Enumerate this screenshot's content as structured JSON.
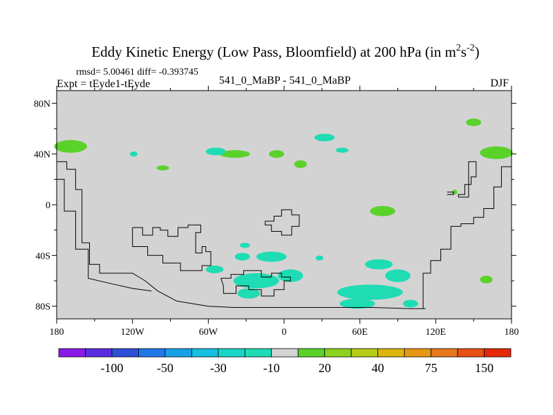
{
  "chart_data": {
    "type": "heatmap",
    "title": "Eddy Kinetic Energy (Low Pass, Bloomfield) at 200 hPa (in m",
    "title_units": {
      "sup1": "2",
      "mid": "s",
      "sup2": "-2",
      "tail": ")"
    },
    "info": {
      "stats": "rmsd= 5.00461 diff= -0.393745",
      "expt": "Expt = tEyde1-tEyde",
      "center": "541_0_MaBP - 541_0_MaBP",
      "season": "DJF"
    },
    "x_axis": {
      "range": [
        -180,
        180
      ],
      "tick_values": [
        -180,
        -120,
        -60,
        0,
        60,
        120,
        180
      ],
      "tick_labels": [
        "180",
        "120W",
        "60W",
        "0",
        "60E",
        "120E",
        "180"
      ]
    },
    "y_axis": {
      "range": [
        -90,
        90
      ],
      "tick_values": [
        80,
        40,
        0,
        -40,
        -80
      ],
      "tick_labels": [
        "80N",
        "40N",
        "0",
        "40S",
        "80S"
      ]
    },
    "background_color": "#d3d3d3",
    "colorbar": {
      "colors": [
        "#8a1ae6",
        "#5a2ee0",
        "#2f4fd6",
        "#1f78e6",
        "#18a0e6",
        "#14bfe0",
        "#19d6c8",
        "#1fdcb4",
        "#d3d3d3",
        "#5ad22a",
        "#8cd21e",
        "#b4cc14",
        "#dcb40a",
        "#e69614",
        "#e6781e",
        "#e65014",
        "#e6280a"
      ],
      "labels": [
        "-100",
        "-50",
        "-30",
        "-10",
        "20",
        "40",
        "75",
        "150"
      ]
    },
    "regions": [
      {
        "sign": "positive",
        "color": "#5ad22a",
        "lon": -169,
        "lat": 46,
        "rlon": 13,
        "rlat": 5
      },
      {
        "sign": "positive",
        "color": "#5ad22a",
        "lon": -39,
        "lat": 40,
        "rlon": 12,
        "rlat": 3
      },
      {
        "sign": "positive",
        "color": "#5ad22a",
        "lon": -6,
        "lat": 40,
        "rlon": 6,
        "rlat": 3
      },
      {
        "sign": "positive",
        "color": "#5ad22a",
        "lon": 13,
        "lat": 32,
        "rlon": 5,
        "rlat": 3
      },
      {
        "sign": "positive",
        "color": "#5ad22a",
        "lon": -96,
        "lat": 29,
        "rlon": 5,
        "rlat": 2
      },
      {
        "sign": "positive",
        "color": "#5ad22a",
        "lon": 150,
        "lat": 65,
        "rlon": 6,
        "rlat": 3
      },
      {
        "sign": "positive",
        "color": "#5ad22a",
        "lon": 168,
        "lat": 41,
        "rlon": 13,
        "rlat": 5
      },
      {
        "sign": "positive",
        "color": "#5ad22a",
        "lon": 78,
        "lat": -5,
        "rlon": 10,
        "rlat": 4
      },
      {
        "sign": "positive",
        "color": "#5ad22a",
        "lon": 135,
        "lat": 10,
        "rlon": 2,
        "rlat": 2
      },
      {
        "sign": "positive",
        "color": "#5ad22a",
        "lon": 160,
        "lat": -59,
        "rlon": 5,
        "rlat": 3
      },
      {
        "sign": "negative",
        "color": "#1fdcb4",
        "lon": -54,
        "lat": 42,
        "rlon": 8,
        "rlat": 3
      },
      {
        "sign": "negative",
        "color": "#1fdcb4",
        "lon": 32,
        "lat": 53,
        "rlon": 8,
        "rlat": 3
      },
      {
        "sign": "negative",
        "color": "#1fdcb4",
        "lon": 46,
        "lat": 43,
        "rlon": 5,
        "rlat": 2
      },
      {
        "sign": "negative",
        "color": "#1fdcb4",
        "lon": -119,
        "lat": 40,
        "rlon": 3,
        "rlat": 2
      },
      {
        "sign": "negative",
        "color": "#1fdcb4",
        "lon": -31,
        "lat": -32,
        "rlon": 4,
        "rlat": 2
      },
      {
        "sign": "negative",
        "color": "#1fdcb4",
        "lon": -33,
        "lat": -41,
        "rlon": 6,
        "rlat": 3
      },
      {
        "sign": "negative",
        "color": "#1fdcb4",
        "lon": -10,
        "lat": -41,
        "rlon": 12,
        "rlat": 4
      },
      {
        "sign": "negative",
        "color": "#1fdcb4",
        "lon": 28,
        "lat": -42,
        "rlon": 3,
        "rlat": 2
      },
      {
        "sign": "negative",
        "color": "#1fdcb4",
        "lon": -55,
        "lat": -51,
        "rlon": 7,
        "rlat": 3
      },
      {
        "sign": "negative",
        "color": "#1fdcb4",
        "lon": -22,
        "lat": -60,
        "rlon": 18,
        "rlat": 6
      },
      {
        "sign": "negative",
        "color": "#1fdcb4",
        "lon": 5,
        "lat": -56,
        "rlon": 10,
        "rlat": 5
      },
      {
        "sign": "negative",
        "color": "#1fdcb4",
        "lon": -28,
        "lat": -70,
        "rlon": 9,
        "rlat": 4
      },
      {
        "sign": "negative",
        "color": "#1fdcb4",
        "lon": 68,
        "lat": -69,
        "rlon": 26,
        "rlat": 6
      },
      {
        "sign": "negative",
        "color": "#1fdcb4",
        "lon": 58,
        "lat": -78,
        "rlon": 14,
        "rlat": 4
      },
      {
        "sign": "negative",
        "color": "#1fdcb4",
        "lon": 75,
        "lat": -47,
        "rlon": 11,
        "rlat": 4
      },
      {
        "sign": "negative",
        "color": "#1fdcb4",
        "lon": 90,
        "lat": -56,
        "rlon": 10,
        "rlat": 5
      },
      {
        "sign": "negative",
        "color": "#1fdcb4",
        "lon": 100,
        "lat": -78,
        "rlon": 6,
        "rlat": 3
      }
    ],
    "landmask_outlines": [
      [
        [
          -180,
          34
        ],
        [
          -172,
          34
        ],
        [
          -172,
          28
        ],
        [
          -165,
          28
        ],
        [
          -165,
          12
        ],
        [
          -160,
          12
        ],
        [
          -160,
          -30
        ],
        [
          -154,
          -30
        ],
        [
          -154,
          -47
        ],
        [
          -146,
          -47
        ],
        [
          -146,
          -54
        ],
        [
          -120,
          -54
        ],
        [
          -110,
          -60
        ],
        [
          -100,
          -68
        ],
        [
          -85,
          -76
        ],
        [
          -60,
          -80
        ],
        [
          -40,
          -81
        ],
        [
          -10,
          -81
        ],
        [
          30,
          -81
        ],
        [
          70,
          -81
        ],
        [
          100,
          -82
        ],
        [
          112,
          -82
        ]
      ],
      [
        [
          -180,
          20
        ],
        [
          -174,
          20
        ],
        [
          -174,
          -5
        ],
        [
          -165,
          -5
        ],
        [
          -165,
          -35
        ],
        [
          -155,
          -35
        ],
        [
          -155,
          -58
        ],
        [
          -138,
          -62
        ],
        [
          -120,
          -66
        ],
        [
          -105,
          -68
        ]
      ],
      [
        [
          -120,
          -18
        ],
        [
          -112,
          -18
        ],
        [
          -112,
          -24
        ],
        [
          -104,
          -24
        ],
        [
          -104,
          -18
        ],
        [
          -98,
          -18
        ],
        [
          -98,
          -20
        ],
        [
          -92,
          -20
        ],
        [
          -92,
          -25
        ],
        [
          -84,
          -25
        ],
        [
          -84,
          -18
        ],
        [
          -76,
          -18
        ],
        [
          -76,
          -16
        ],
        [
          -66,
          -16
        ],
        [
          -66,
          -22
        ],
        [
          -70,
          -22
        ],
        [
          -70,
          -38
        ],
        [
          -65,
          -38
        ],
        [
          -65,
          -33
        ],
        [
          -62,
          -33
        ],
        [
          -62,
          -37
        ],
        [
          -58,
          -37
        ],
        [
          -58,
          -48
        ],
        [
          -65,
          -48
        ],
        [
          -65,
          -52
        ],
        [
          -82,
          -52
        ],
        [
          -82,
          -46
        ],
        [
          -96,
          -46
        ],
        [
          -96,
          -40
        ],
        [
          -108,
          -40
        ],
        [
          -108,
          -33
        ],
        [
          -120,
          -33
        ],
        [
          -120,
          -18
        ]
      ],
      [
        [
          -15,
          -13
        ],
        [
          -8,
          -13
        ],
        [
          -8,
          -9
        ],
        [
          -2,
          -9
        ],
        [
          -2,
          -4
        ],
        [
          6,
          -4
        ],
        [
          6,
          -8
        ],
        [
          12,
          -8
        ],
        [
          12,
          -17
        ],
        [
          6,
          -17
        ],
        [
          6,
          -24
        ],
        [
          -2,
          -24
        ],
        [
          -2,
          -21
        ],
        [
          -10,
          -21
        ],
        [
          -10,
          -16
        ],
        [
          -15,
          -16
        ],
        [
          -15,
          -13
        ]
      ],
      [
        [
          -50,
          -58
        ],
        [
          -42,
          -58
        ],
        [
          -42,
          -55
        ],
        [
          -32,
          -55
        ],
        [
          -32,
          -52
        ],
        [
          -18,
          -52
        ],
        [
          -18,
          -57
        ],
        [
          -10,
          -57
        ],
        [
          -10,
          -54
        ],
        [
          -2,
          -54
        ],
        [
          -2,
          -57
        ],
        [
          5,
          -57
        ],
        [
          5,
          -60
        ],
        [
          0,
          -60
        ],
        [
          0,
          -67
        ],
        [
          -8,
          -67
        ],
        [
          -8,
          -72
        ],
        [
          -18,
          -72
        ],
        [
          -18,
          -67
        ],
        [
          -28,
          -67
        ],
        [
          -28,
          -64
        ],
        [
          -38,
          -64
        ],
        [
          -38,
          -70
        ],
        [
          -48,
          -70
        ],
        [
          -48,
          -64
        ],
        [
          -50,
          -58
        ]
      ],
      [
        [
          110,
          -82
        ],
        [
          110,
          -54
        ],
        [
          116,
          -54
        ],
        [
          116,
          -44
        ],
        [
          124,
          -44
        ],
        [
          124,
          -35
        ],
        [
          132,
          -35
        ],
        [
          132,
          -17
        ],
        [
          140,
          -17
        ],
        [
          140,
          -15
        ],
        [
          150,
          -15
        ],
        [
          150,
          -10
        ],
        [
          158,
          -10
        ],
        [
          158,
          -3
        ],
        [
          166,
          -3
        ],
        [
          166,
          14
        ],
        [
          172,
          14
        ],
        [
          172,
          30
        ],
        [
          180,
          30
        ]
      ],
      [
        [
          138,
          6
        ],
        [
          146,
          6
        ],
        [
          146,
          34
        ],
        [
          152,
          34
        ],
        [
          152,
          22
        ],
        [
          148,
          22
        ],
        [
          148,
          16
        ],
        [
          143,
          16
        ],
        [
          143,
          8
        ],
        [
          138,
          8
        ],
        [
          138,
          6
        ]
      ],
      [
        [
          129,
          10
        ],
        [
          134,
          10
        ],
        [
          134,
          8
        ],
        [
          129,
          8
        ]
      ]
    ]
  }
}
